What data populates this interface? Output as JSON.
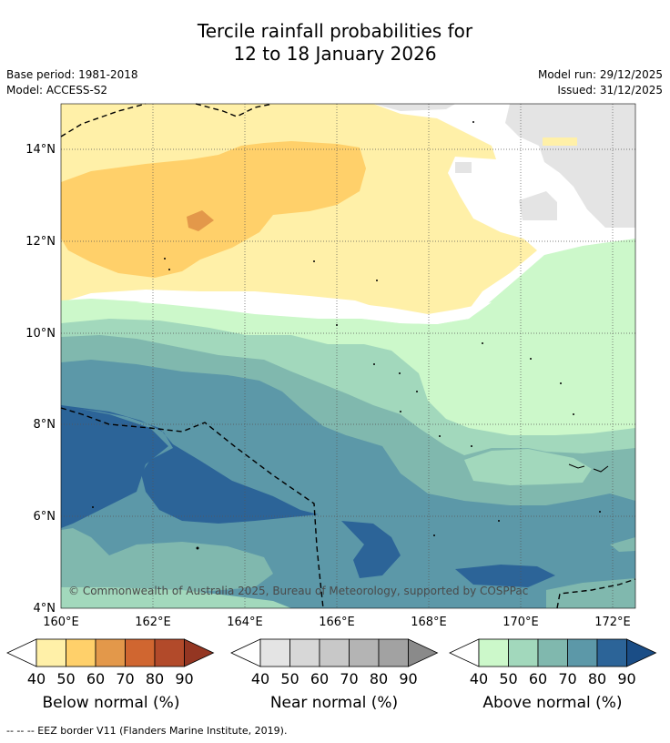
{
  "title": {
    "line1": "Tercile rainfall probabilities for",
    "line2": "12 to 18 January 2026"
  },
  "info": {
    "base_period": "Base period: 1981-2018",
    "model": "Model: ACCESS-S2",
    "model_run": "Model run: 29/12/2025",
    "issued": "Issued: 31/12/2025"
  },
  "map": {
    "lat_labels": [
      "14°N",
      "12°N",
      "10°N",
      "8°N",
      "6°N",
      "4°N"
    ],
    "lon_labels": [
      "160°E",
      "162°E",
      "164°E",
      "166°E",
      "168°E",
      "170°E",
      "172°E"
    ],
    "copyright": "© Commonwealth of Australia 2025, Bureau of Meteorology, supported by COSPPac",
    "colors": {
      "below": [
        "#fff0a8",
        "#ffd06a",
        "#e3984a",
        "#d06630",
        "#b24a2a",
        "#943622"
      ],
      "near": [
        "#e4e4e4",
        "#d7d7d7",
        "#c8c8c8",
        "#b4b4b4",
        "#a2a2a2",
        "#8a8a8a"
      ],
      "above": [
        "#ccf8ca",
        "#a2d8bc",
        "#80b8ae",
        "#5c98a8",
        "#2c6498",
        "#1a4d86"
      ],
      "border": "#000000"
    }
  },
  "legends": [
    {
      "label": "Below normal (%)",
      "ticks": [
        "40",
        "50",
        "60",
        "70",
        "80",
        "90"
      ]
    },
    {
      "label": "Near normal (%)",
      "ticks": [
        "40",
        "50",
        "60",
        "70",
        "80",
        "90"
      ]
    },
    {
      "label": "Above normal (%)",
      "ticks": [
        "40",
        "50",
        "60",
        "70",
        "80",
        "90"
      ]
    }
  ],
  "footnote": "--  --  -- EEZ border V11 (Flanders Marine Institute, 2019)."
}
